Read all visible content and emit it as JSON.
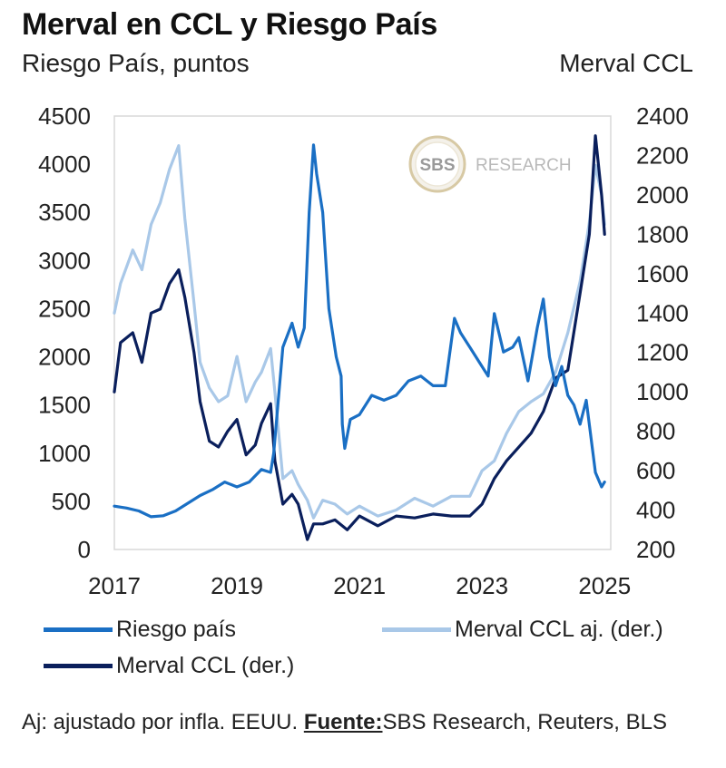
{
  "chart_data": {
    "type": "line",
    "title": "Merval en CCL y Riesgo País",
    "ylabel_left": "Riesgo País, puntos",
    "ylabel_right": "Merval CCL",
    "xlim": [
      2017.0,
      2025.1
    ],
    "ylim_left": [
      0,
      4500
    ],
    "ylim_right": [
      200,
      2400
    ],
    "xticks": [
      2017,
      2019,
      2021,
      2023,
      2025
    ],
    "xtick_labels": [
      "2017",
      "2019",
      "2021",
      "2023",
      "2025"
    ],
    "yticks_left": [
      0,
      500,
      1000,
      1500,
      2000,
      2500,
      3000,
      3500,
      4000,
      4500
    ],
    "ytick_labels_left": [
      "0",
      "500",
      "1000",
      "1500",
      "2000",
      "2500",
      "3000",
      "3500",
      "4000",
      "4500"
    ],
    "yticks_right": [
      200,
      400,
      600,
      800,
      1000,
      1200,
      1400,
      1600,
      1800,
      2000,
      2200,
      2400
    ],
    "ytick_labels_right": [
      "200",
      "400",
      "600",
      "800",
      "1000",
      "1200",
      "1400",
      "1600",
      "1800",
      "2000",
      "2200",
      "2400"
    ],
    "series": [
      {
        "name": "Merval CCL aj. (der.)",
        "axis": "right",
        "color": "#a9c8e8",
        "x": [
          2017.0,
          2017.1,
          2017.3,
          2017.45,
          2017.6,
          2017.75,
          2017.9,
          2018.05,
          2018.15,
          2018.3,
          2018.4,
          2018.55,
          2018.7,
          2018.85,
          2019.0,
          2019.15,
          2019.3,
          2019.4,
          2019.55,
          2019.62,
          2019.75,
          2019.9,
          2020.0,
          2020.15,
          2020.25,
          2020.4,
          2020.6,
          2020.8,
          2021.0,
          2021.3,
          2021.6,
          2021.9,
          2022.2,
          2022.5,
          2022.8,
          2023.0,
          2023.2,
          2023.4,
          2023.6,
          2023.8,
          2024.0,
          2024.2,
          2024.4,
          2024.6,
          2024.75,
          2024.85,
          2024.95,
          2025.0
        ],
        "values": [
          1400,
          1550,
          1720,
          1620,
          1850,
          1960,
          2130,
          2250,
          1880,
          1450,
          1150,
          1020,
          950,
          980,
          1180,
          950,
          1050,
          1100,
          1220,
          1000,
          560,
          600,
          530,
          450,
          360,
          450,
          430,
          380,
          420,
          370,
          400,
          460,
          420,
          470,
          470,
          600,
          650,
          790,
          900,
          950,
          990,
          1100,
          1300,
          1560,
          1860,
          2150,
          2000,
          1850
        ]
      },
      {
        "name": "Merval CCL (der.)",
        "axis": "right",
        "color": "#0a1f5c",
        "x": [
          2017.0,
          2017.1,
          2017.3,
          2017.45,
          2017.6,
          2017.75,
          2017.9,
          2018.05,
          2018.15,
          2018.3,
          2018.4,
          2018.55,
          2018.7,
          2018.85,
          2019.0,
          2019.15,
          2019.3,
          2019.4,
          2019.55,
          2019.62,
          2019.75,
          2019.9,
          2020.0,
          2020.15,
          2020.25,
          2020.4,
          2020.6,
          2020.8,
          2021.0,
          2021.3,
          2021.6,
          2021.9,
          2022.2,
          2022.5,
          2022.8,
          2023.0,
          2023.2,
          2023.4,
          2023.6,
          2023.8,
          2024.0,
          2024.2,
          2024.4,
          2024.6,
          2024.75,
          2024.85,
          2024.95,
          2025.0
        ],
        "values": [
          1000,
          1250,
          1300,
          1150,
          1400,
          1420,
          1550,
          1620,
          1480,
          1200,
          950,
          750,
          720,
          800,
          860,
          680,
          730,
          840,
          940,
          650,
          430,
          480,
          430,
          250,
          330,
          330,
          350,
          300,
          370,
          320,
          370,
          360,
          380,
          370,
          370,
          430,
          560,
          650,
          720,
          790,
          900,
          1070,
          1110,
          1500,
          1800,
          2300,
          2000,
          1800
        ]
      },
      {
        "name": "Riesgo país",
        "axis": "left",
        "color": "#1a6fc4",
        "x": [
          2017.0,
          2017.2,
          2017.4,
          2017.6,
          2017.8,
          2018.0,
          2018.2,
          2018.4,
          2018.6,
          2018.8,
          2019.0,
          2019.2,
          2019.4,
          2019.55,
          2019.6,
          2019.75,
          2019.9,
          2020.0,
          2020.1,
          2020.18,
          2020.25,
          2020.3,
          2020.4,
          2020.5,
          2020.62,
          2020.7,
          2020.72,
          2020.76,
          2020.85,
          2021.0,
          2021.2,
          2021.4,
          2021.6,
          2021.8,
          2022.0,
          2022.2,
          2022.4,
          2022.55,
          2022.65,
          2022.8,
          2022.95,
          2023.1,
          2023.2,
          2023.35,
          2023.5,
          2023.6,
          2023.75,
          2023.9,
          2024.0,
          2024.1,
          2024.2,
          2024.3,
          2024.4,
          2024.5,
          2024.6,
          2024.7,
          2024.85,
          2024.95,
          2025.0
        ],
        "values": [
          450,
          430,
          400,
          340,
          350,
          400,
          480,
          560,
          620,
          700,
          650,
          700,
          830,
          800,
          1000,
          2100,
          2350,
          2100,
          2300,
          3500,
          4200,
          3900,
          3500,
          2500,
          2000,
          1800,
          1300,
          1050,
          1350,
          1400,
          1600,
          1550,
          1600,
          1750,
          1800,
          1700,
          1700,
          2400,
          2250,
          2100,
          1950,
          1800,
          2450,
          2050,
          2100,
          2200,
          1750,
          2300,
          2600,
          2000,
          1700,
          1900,
          1600,
          1500,
          1300,
          1550,
          800,
          650,
          700
        ]
      }
    ],
    "watermark_text": "RESEARCH",
    "watermark_logo": "SBS",
    "legend_position": "bottom"
  },
  "footnote": {
    "prefix": "Aj: ajustado por infla. EEUU. ",
    "source_label": "Fuente:",
    "source": "SBS Research, Reuters, BLS"
  }
}
